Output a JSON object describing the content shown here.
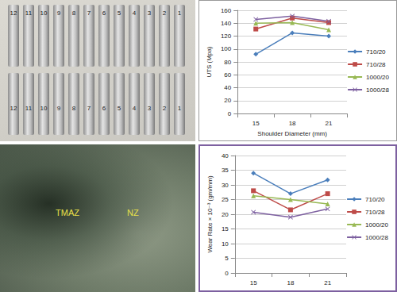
{
  "chart_data": [
    {
      "type": "line",
      "x_label": "Shoulder Diameter (mm)",
      "y_label": "UTS (Mpa)",
      "categories": [
        "15",
        "18",
        "21"
      ],
      "series": [
        {
          "name": "710/20",
          "color": "#4a7ebb",
          "marker": "diamond",
          "values": [
            92,
            125,
            120
          ]
        },
        {
          "name": "710/28",
          "color": "#be4b48",
          "marker": "square",
          "values": [
            131,
            148,
            141
          ]
        },
        {
          "name": "1000/20",
          "color": "#98b954",
          "marker": "triangle",
          "values": [
            140,
            141,
            130
          ]
        },
        {
          "name": "1000/28",
          "color": "#7d60a0",
          "marker": "x",
          "values": [
            146,
            151,
            143
          ]
        }
      ],
      "ylim": [
        0,
        160
      ],
      "yticks": [
        0,
        20,
        40,
        60,
        80,
        100,
        120,
        140,
        160
      ],
      "grid": true,
      "legend": "right"
    },
    {
      "type": "line",
      "y_label": "Wear Rate × 10⁻³ (gm/mm)",
      "categories": [
        "15",
        "18",
        "21"
      ],
      "series": [
        {
          "name": "710/20",
          "color": "#4a7ebb",
          "marker": "diamond",
          "values": [
            34,
            27,
            31.7
          ]
        },
        {
          "name": "710/28",
          "color": "#be4b48",
          "marker": "square",
          "values": [
            28,
            21.5,
            27
          ]
        },
        {
          "name": "1000/20",
          "color": "#98b954",
          "marker": "triangle",
          "values": [
            26.3,
            25,
            23.5
          ]
        },
        {
          "name": "1000/28",
          "color": "#7d60a0",
          "marker": "x",
          "values": [
            20.7,
            19,
            21.8
          ]
        }
      ],
      "ylim": [
        0,
        40
      ],
      "yticks": [
        0,
        5,
        10,
        15,
        20,
        25,
        30,
        35,
        40
      ],
      "grid": true,
      "legend": "right"
    }
  ],
  "photos": [
    {
      "rows": [
        [
          "12",
          "11",
          "10",
          "9",
          "8",
          "7",
          "6",
          "5",
          "4",
          "3",
          "2",
          "1"
        ],
        [
          "12",
          "11",
          "10",
          "9",
          "8",
          "7",
          "6",
          "5",
          "4",
          "3",
          "2",
          "1"
        ]
      ]
    },
    {
      "labels": [
        "TMAZ",
        "NZ"
      ]
    }
  ]
}
